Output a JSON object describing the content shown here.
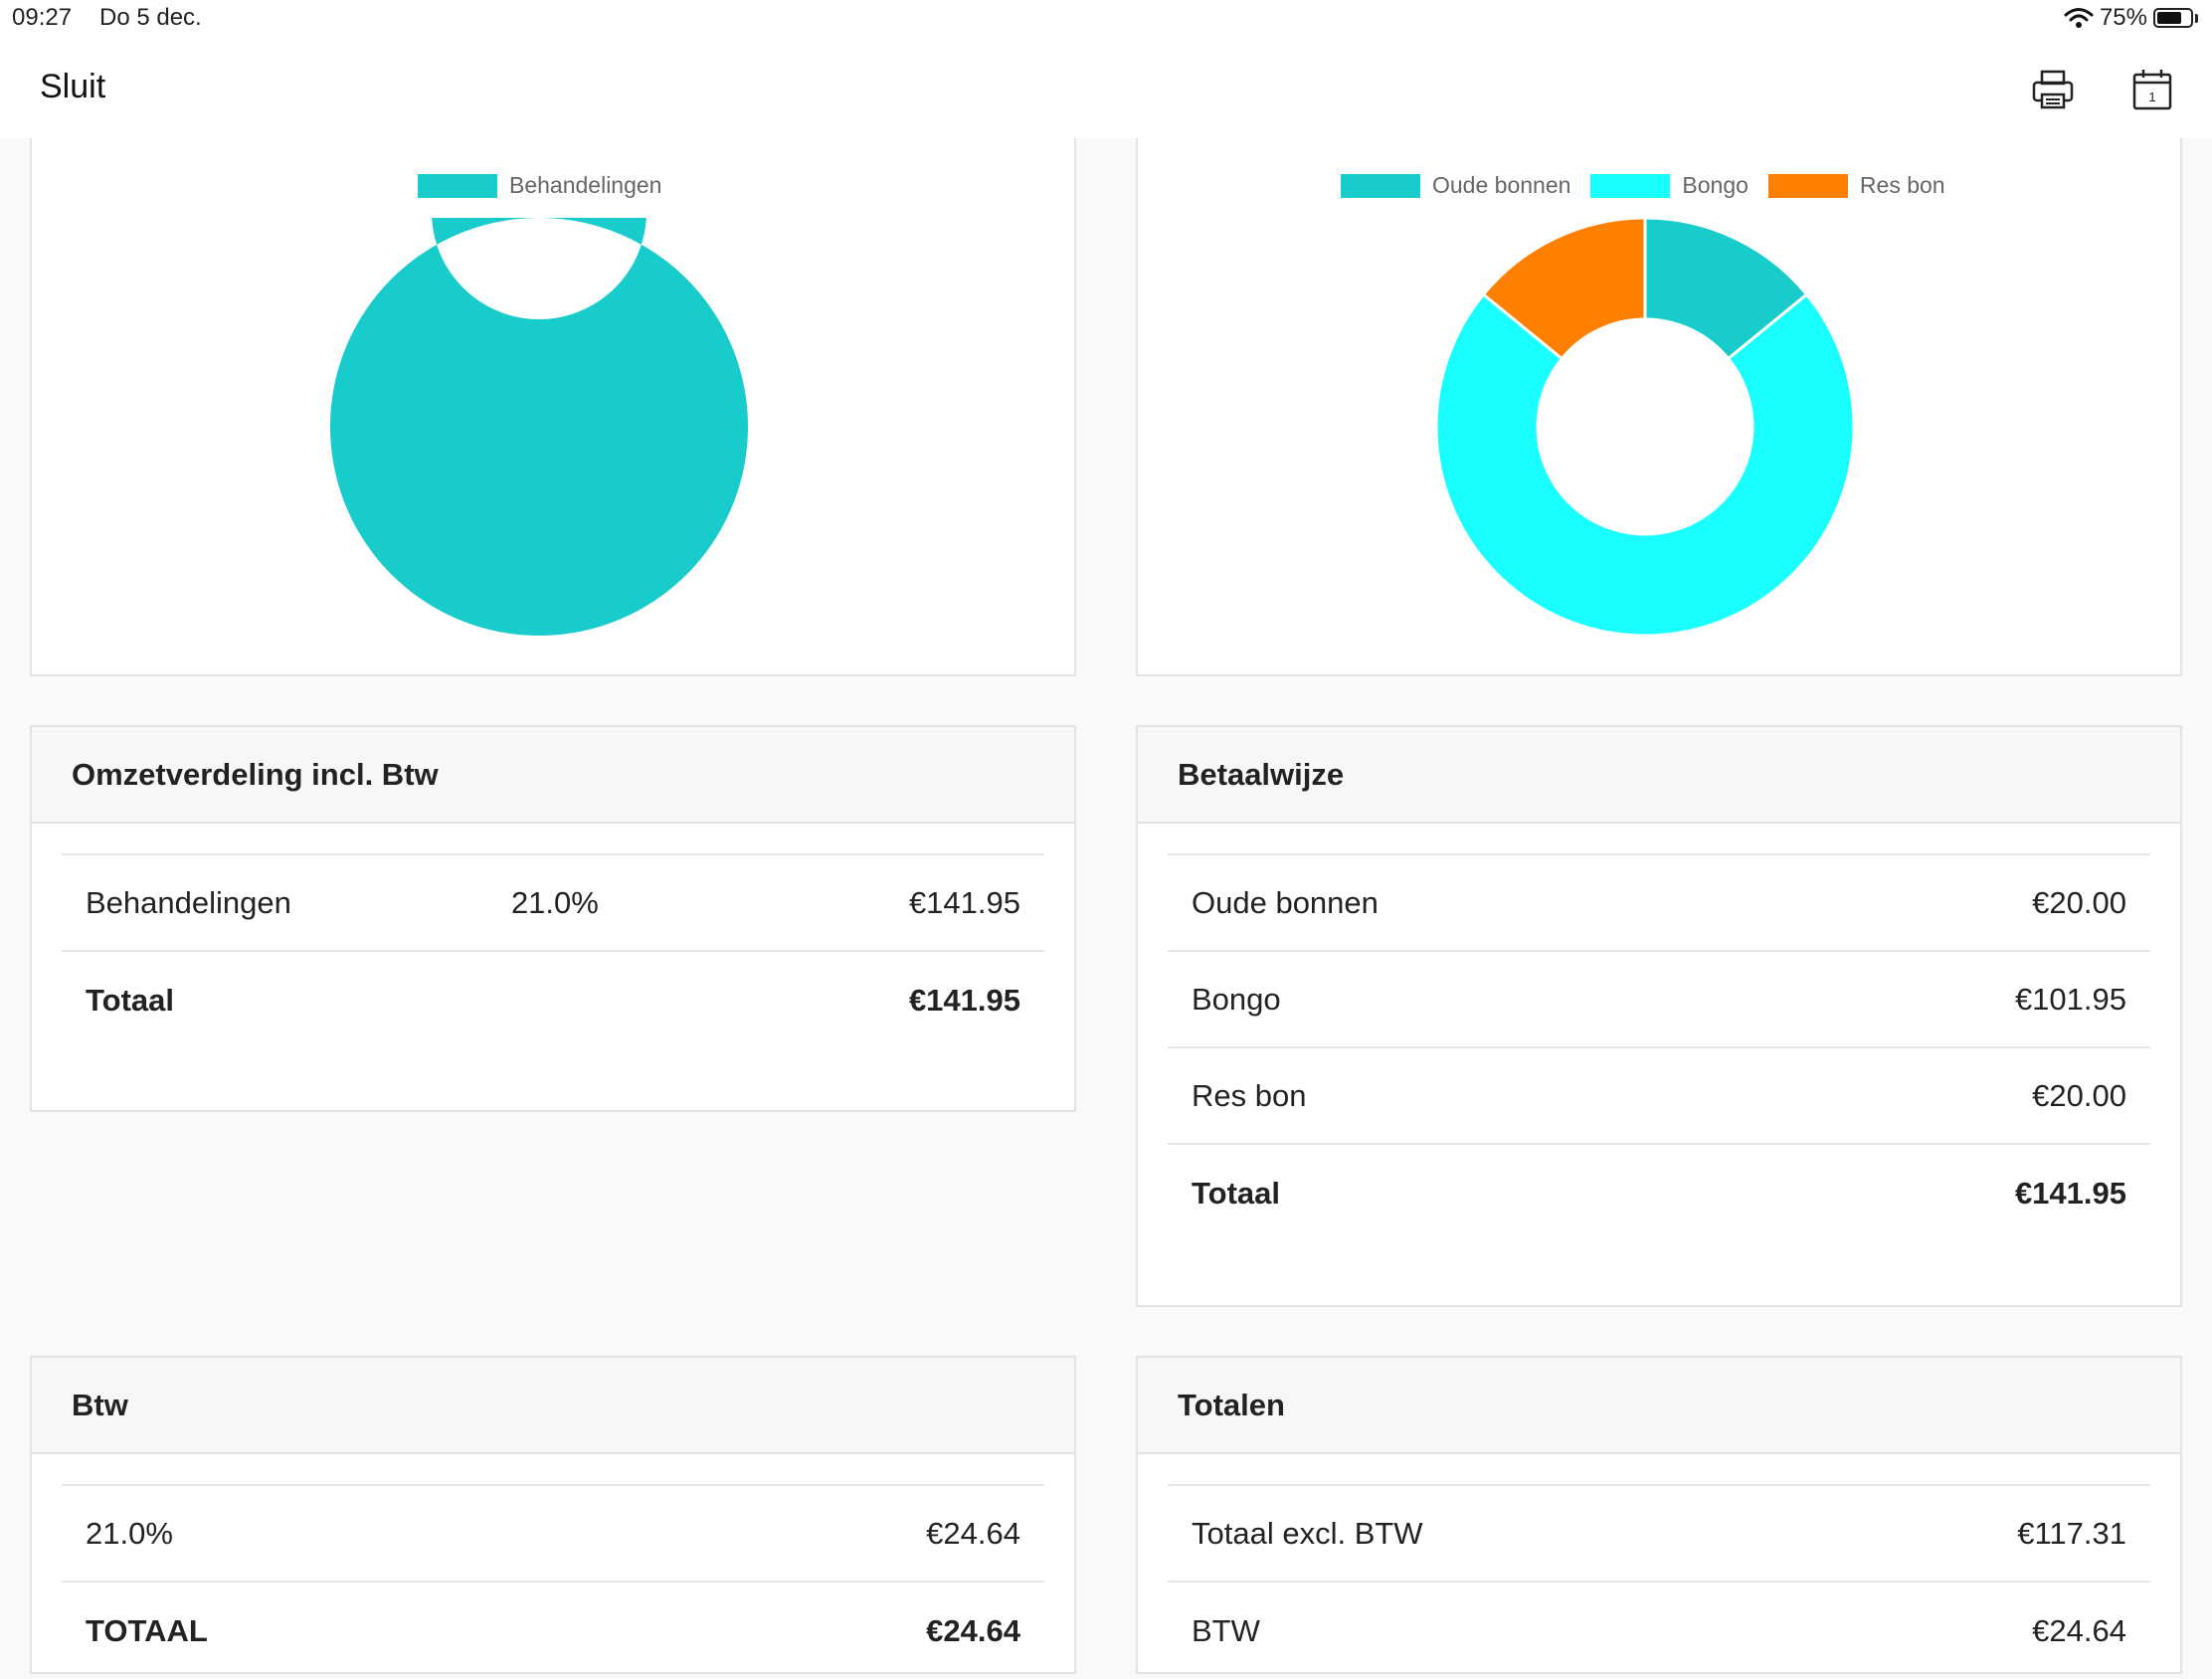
{
  "status_bar": {
    "time": "09:27",
    "date": "Do 5 dec.",
    "battery_percent": "75%",
    "battery_level": 0.75
  },
  "nav": {
    "close_label": "Sluit",
    "icons": [
      "print-icon",
      "calendar-icon"
    ],
    "calendar_day": "1"
  },
  "charts": {
    "left": {
      "type": "doughnut",
      "legend": [
        {
          "label": "Behandelingen",
          "color": "#19cccc"
        }
      ],
      "values": [
        141.95
      ]
    },
    "right": {
      "type": "doughnut",
      "legend": [
        {
          "label": "Oude bonnen",
          "color": "#19cccc"
        },
        {
          "label": "Bongo",
          "color": "#19ffff"
        },
        {
          "label": "Res bon",
          "color": "#ff8000"
        }
      ],
      "values": [
        20.0,
        101.95,
        20.0
      ]
    }
  },
  "chart_data": [
    {
      "type": "pie",
      "categories": [
        "Behandelingen"
      ],
      "values": [
        141.95
      ]
    },
    {
      "type": "pie",
      "categories": [
        "Oude bonnen",
        "Bongo",
        "Res bon"
      ],
      "values": [
        20.0,
        101.95,
        20.0
      ]
    }
  ],
  "omzet": {
    "title": "Omzetverdeling incl. Btw",
    "rows": [
      {
        "label": "Behandelingen",
        "rate": "21.0%",
        "amount": "€141.95"
      }
    ],
    "total_label": "Totaal",
    "total_amount": "€141.95"
  },
  "betaal": {
    "title": "Betaalwijze",
    "rows": [
      {
        "label": "Oude bonnen",
        "amount": "€20.00"
      },
      {
        "label": "Bongo",
        "amount": "€101.95"
      },
      {
        "label": "Res bon",
        "amount": "€20.00"
      }
    ],
    "total_label": "Totaal",
    "total_amount": "€141.95"
  },
  "btw": {
    "title": "Btw",
    "rows": [
      {
        "label": "21.0%",
        "amount": "€24.64"
      }
    ],
    "total_label": "TOTAAL",
    "total_amount": "€24.64"
  },
  "totalen": {
    "title": "Totalen",
    "rows": [
      {
        "label": "Totaal excl. BTW",
        "amount": "€117.31"
      },
      {
        "label": "BTW",
        "amount": "€24.64"
      }
    ]
  },
  "colors": {
    "teal": "#19cccc",
    "cyan": "#19ffff",
    "orange": "#ff8000"
  }
}
